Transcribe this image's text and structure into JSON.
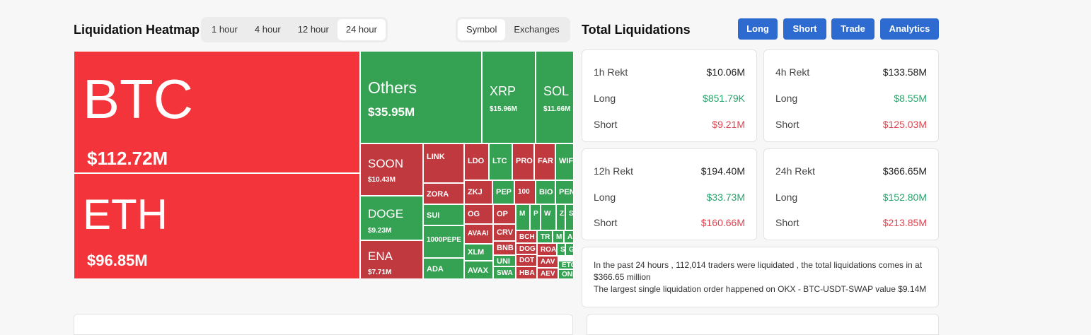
{
  "heatmap": {
    "title": "Liquidation Heatmap",
    "time_tabs": [
      "1 hour",
      "4 hour",
      "12 hour",
      "24 hour"
    ],
    "active_tab": "24 hour",
    "view_tabs": [
      "Symbol",
      "Exchanges"
    ],
    "active_view": "Symbol",
    "colors": {
      "red": "#f3343b",
      "red_dark": "#c0393f",
      "green": "#35a152"
    },
    "tiles": [
      {
        "name": "BTC",
        "value": "$112.72M"
      },
      {
        "name": "ETH",
        "value": "$96.85M"
      },
      {
        "name": "Others",
        "value": "$35.95M"
      },
      {
        "name": "XRP",
        "value": "$15.96M"
      },
      {
        "name": "SOL",
        "value": "$11.66M"
      },
      {
        "name": "SOON",
        "value": "$10.43M"
      },
      {
        "name": "DOGE",
        "value": "$9.23M"
      },
      {
        "name": "ENA",
        "value": "$7.71M"
      },
      {
        "name": "LINK"
      },
      {
        "name": "ZORA"
      },
      {
        "name": "SUI"
      },
      {
        "name": "1000PEPE"
      },
      {
        "name": "ADA"
      },
      {
        "name": "LDO"
      },
      {
        "name": "LTC"
      },
      {
        "name": "PRO"
      },
      {
        "name": "FAR"
      },
      {
        "name": "WIF"
      },
      {
        "name": "ZKJ"
      },
      {
        "name": "PEP"
      },
      {
        "name": "100"
      },
      {
        "name": "BIO"
      },
      {
        "name": "PEN"
      },
      {
        "name": "OG"
      },
      {
        "name": "OP"
      },
      {
        "name": "M"
      },
      {
        "name": "P"
      },
      {
        "name": "W"
      },
      {
        "name": "Z"
      },
      {
        "name": "S"
      },
      {
        "name": "AVAAI"
      },
      {
        "name": "CRV"
      },
      {
        "name": "BCH"
      },
      {
        "name": "TR"
      },
      {
        "name": "M"
      },
      {
        "name": "A"
      },
      {
        "name": "BNB"
      },
      {
        "name": "DOG"
      },
      {
        "name": "ROA"
      },
      {
        "name": "S"
      },
      {
        "name": "G"
      },
      {
        "name": "XLM"
      },
      {
        "name": "UNI"
      },
      {
        "name": "DOT"
      },
      {
        "name": "AAV"
      },
      {
        "name": "ETC"
      },
      {
        "name": "AVAX"
      },
      {
        "name": "SWA"
      },
      {
        "name": "HBA"
      },
      {
        "name": "AEV"
      },
      {
        "name": "OND"
      }
    ]
  },
  "totals": {
    "title": "Total Liquidations",
    "buttons": [
      "Long",
      "Short",
      "Trade",
      "Analytics"
    ],
    "cards": [
      {
        "label": "1h Rekt",
        "total": "$10.06M",
        "long_label": "Long",
        "long": "$851.79K",
        "short_label": "Short",
        "short": "$9.21M"
      },
      {
        "label": "4h Rekt",
        "total": "$133.58M",
        "long_label": "Long",
        "long": "$8.55M",
        "short_label": "Short",
        "short": "$125.03M"
      },
      {
        "label": "12h Rekt",
        "total": "$194.40M",
        "long_label": "Long",
        "long": "$33.73M",
        "short_label": "Short",
        "short": "$160.66M"
      },
      {
        "label": "24h Rekt",
        "total": "$366.65M",
        "long_label": "Long",
        "long": "$152.80M",
        "short_label": "Short",
        "short": "$213.85M"
      }
    ],
    "summary_line1": "In the past 24 hours , 112,014 traders were liquidated , the total liquidations comes in at $366.65 million",
    "summary_line2": "The largest single liquidation order happened on OKX - BTC-USDT-SWAP value $9.14M"
  }
}
